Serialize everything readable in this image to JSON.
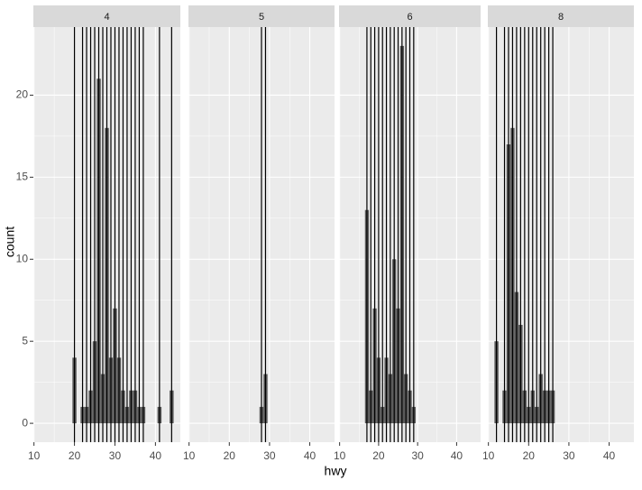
{
  "chart_data": {
    "type": "bar",
    "x_label": "hwy",
    "y_label": "count",
    "color": "#595959",
    "vline_color": "#000000",
    "xlim": [
      9.85,
      46.15
    ],
    "ylim": [
      -1.15,
      24.15
    ],
    "xticks": [
      10,
      20,
      30,
      40
    ],
    "yticks": [
      0,
      5,
      10,
      15,
      20
    ],
    "grid": true,
    "facets": [
      {
        "label": "4",
        "x": [
          20,
          22,
          23,
          24,
          25,
          26,
          27,
          28,
          29,
          30,
          31,
          32,
          33,
          34,
          35,
          36,
          37,
          41,
          44
        ],
        "values": [
          4,
          1,
          1,
          2,
          5,
          21,
          3,
          18,
          4,
          7,
          4,
          2,
          1,
          2,
          2,
          1,
          1,
          1,
          2
        ],
        "vlines": [
          20,
          22,
          23,
          24,
          25,
          26,
          27,
          28,
          29,
          30,
          31,
          32,
          33,
          34,
          35,
          36,
          37,
          41,
          44
        ]
      },
      {
        "label": "5",
        "x": [
          28,
          29
        ],
        "values": [
          1,
          3
        ],
        "vlines": [
          28,
          29
        ]
      },
      {
        "label": "6",
        "x": [
          17,
          18,
          19,
          20,
          21,
          22,
          23,
          24,
          25,
          26,
          27,
          28,
          29
        ],
        "values": [
          13,
          2,
          7,
          4,
          1,
          4,
          3,
          10,
          7,
          23,
          3,
          2,
          1
        ],
        "vlines": [
          17,
          18,
          19,
          20,
          21,
          22,
          23,
          24,
          25,
          26,
          27,
          28,
          29
        ]
      },
      {
        "label": "8",
        "x": [
          12,
          14,
          15,
          16,
          17,
          18,
          19,
          20,
          21,
          22,
          23,
          24,
          25,
          26
        ],
        "values": [
          5,
          2,
          17,
          18,
          8,
          6,
          2,
          1,
          2,
          1,
          3,
          2,
          2,
          2
        ],
        "vlines": [
          12,
          14,
          15,
          16,
          17,
          18,
          19,
          20,
          21,
          22,
          23,
          24,
          25,
          26
        ]
      }
    ]
  }
}
